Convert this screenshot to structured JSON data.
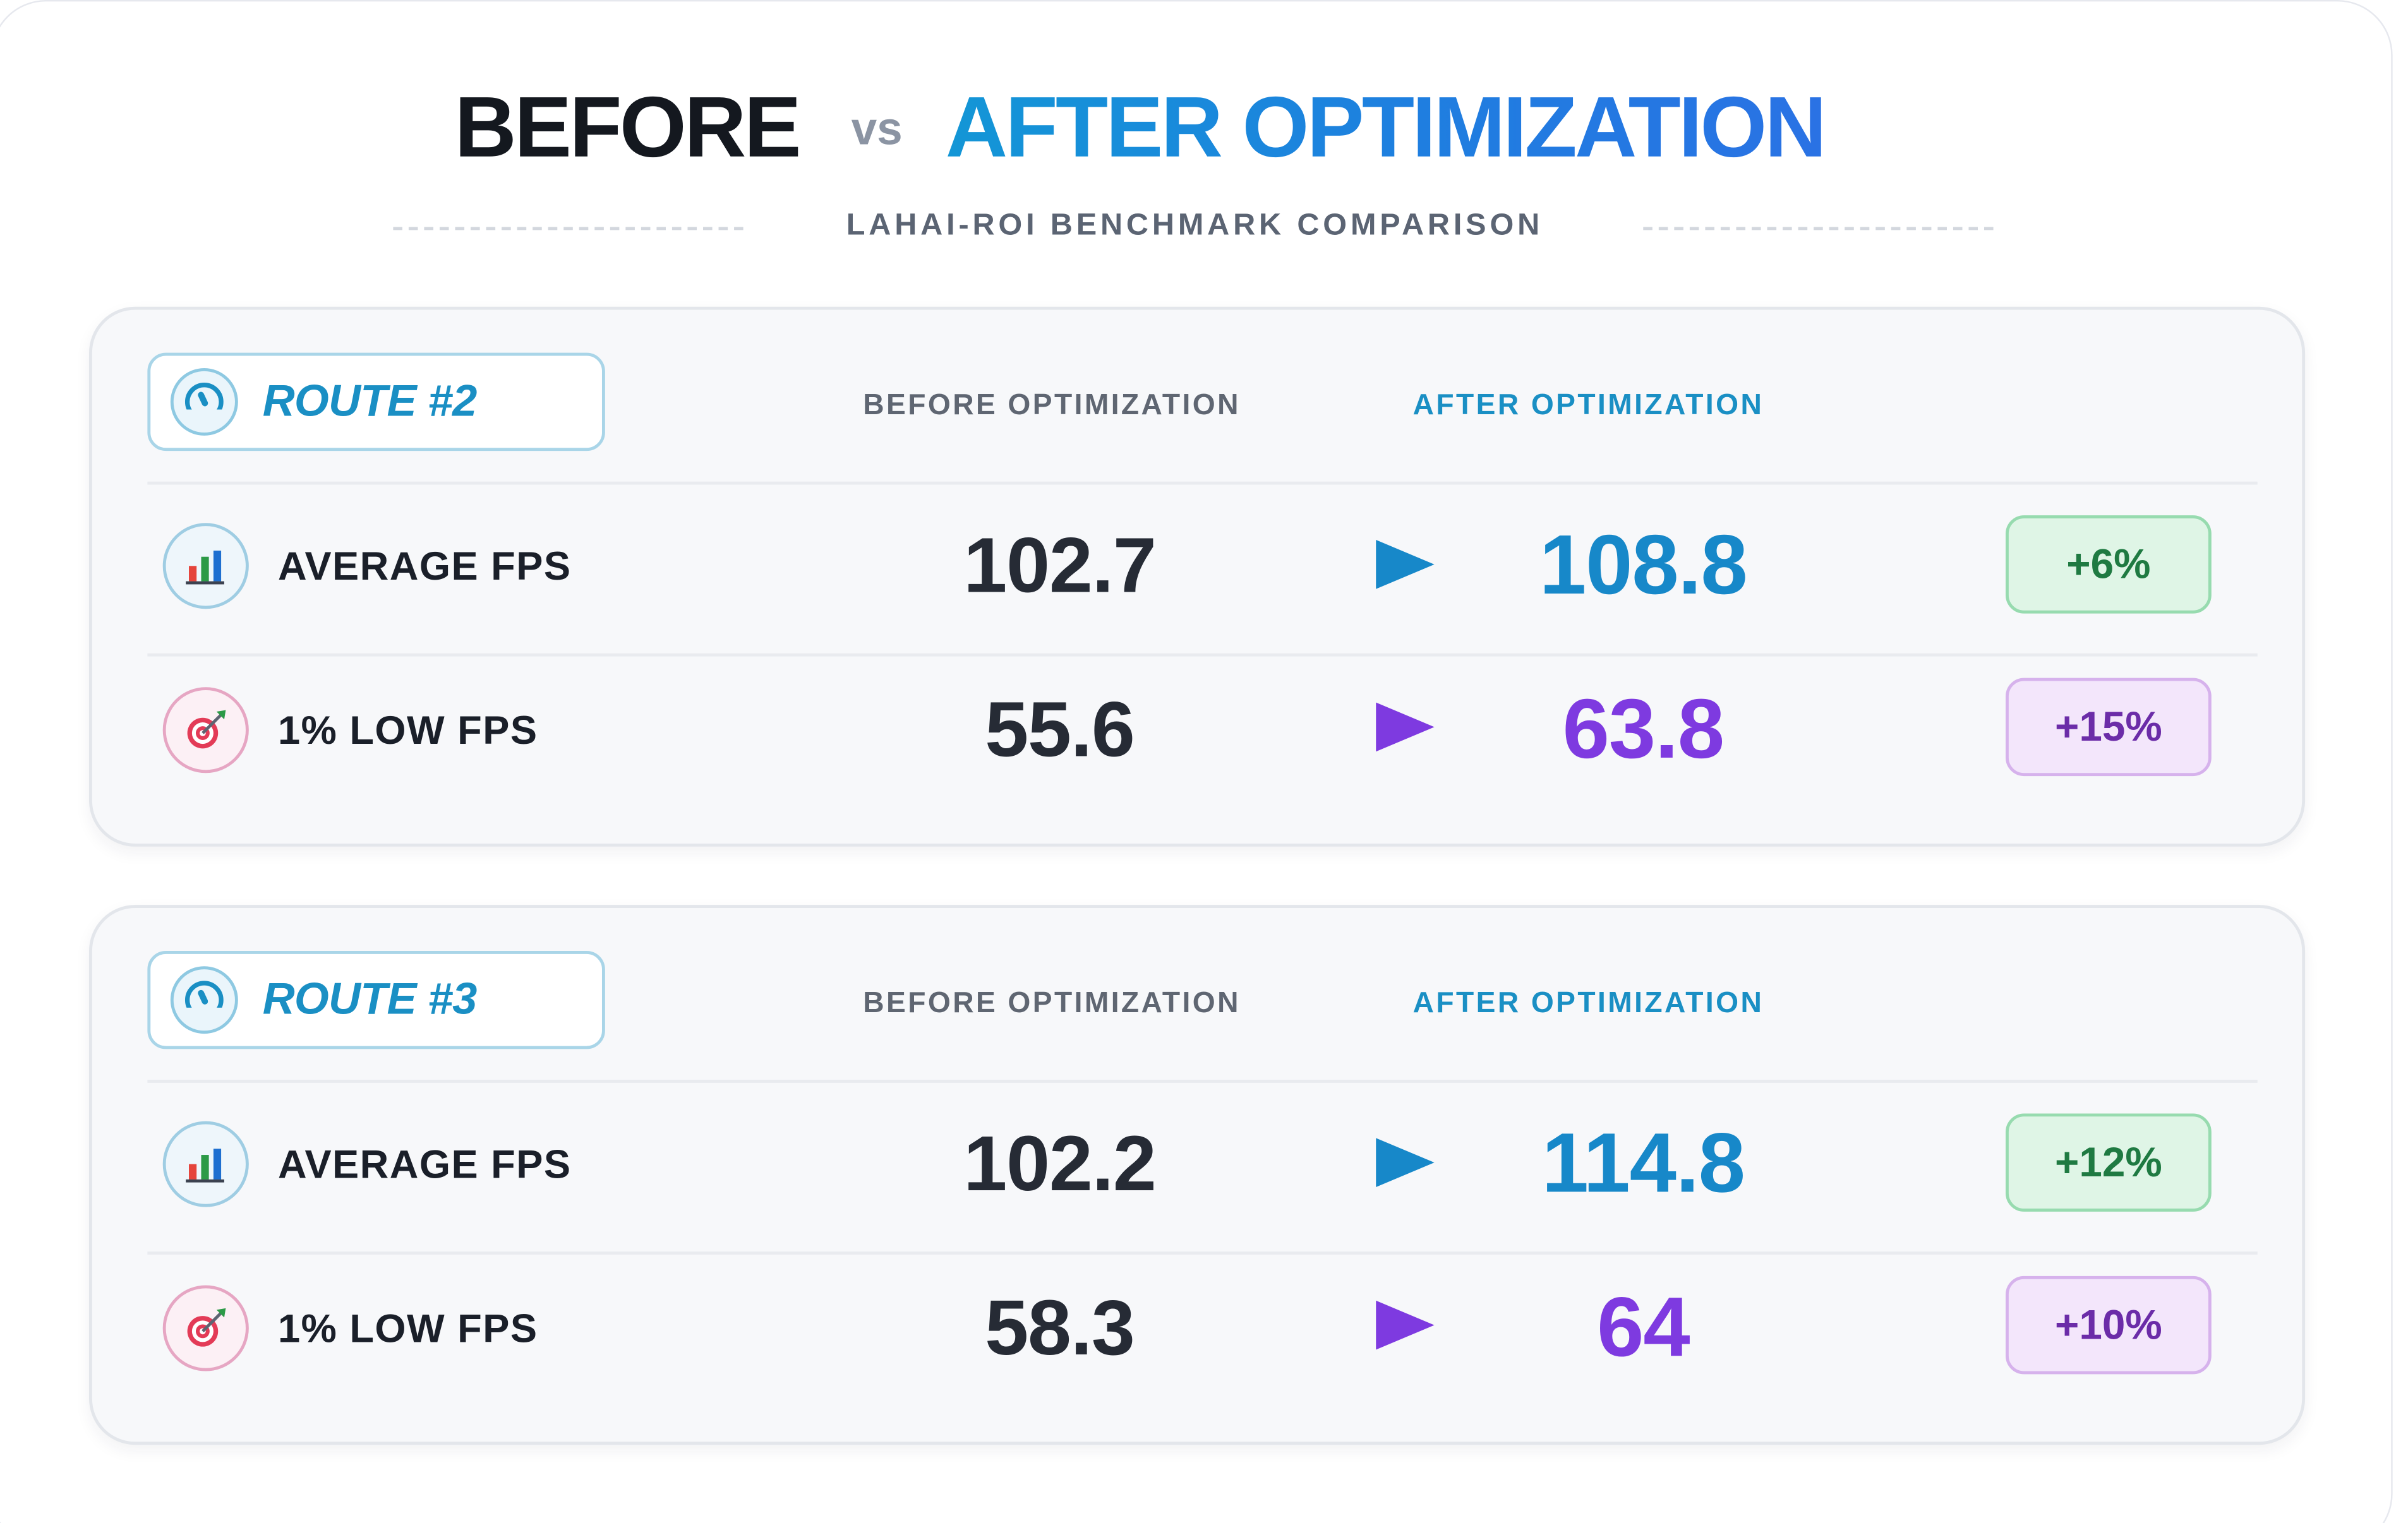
{
  "header": {
    "title_before": "BEFORE",
    "title_vs": "vs",
    "title_after": "AFTER OPTIMIZATION",
    "subtitle": "LAHAI-ROI BENCHMARK COMPARISON"
  },
  "columns": {
    "before": "BEFORE OPTIMIZATION",
    "after": "AFTER OPTIMIZATION"
  },
  "routes": [
    {
      "label": "ROUTE #2",
      "rows": [
        {
          "metric": "AVERAGE FPS",
          "icon": "bar-chart-icon",
          "before": "102.7",
          "after": "108.8",
          "change": "+6%"
        },
        {
          "metric": "1% LOW FPS",
          "icon": "target-icon",
          "before": "55.6",
          "after": "63.8",
          "change": "+15%"
        }
      ]
    },
    {
      "label": "ROUTE #3",
      "rows": [
        {
          "metric": "AVERAGE FPS",
          "icon": "bar-chart-icon",
          "before": "102.2",
          "after": "114.8",
          "change": "+12%"
        },
        {
          "metric": "1% LOW FPS",
          "icon": "target-icon",
          "before": "58.3",
          "after": "64",
          "change": "+10%"
        }
      ]
    }
  ],
  "colors": {
    "accent_blue": "#1a8fc4",
    "accent_purple": "#7e3ae0",
    "badge_green_bg": "#dff5e6",
    "badge_purple_bg": "#f3e6fb"
  }
}
